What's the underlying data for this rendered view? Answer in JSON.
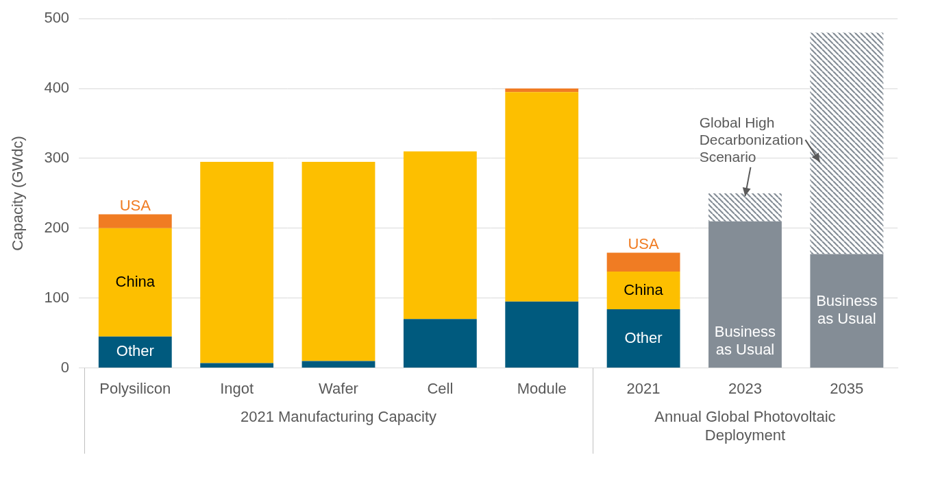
{
  "chart_data": {
    "type": "bar",
    "stacked": true,
    "y_label": "Capacity (GWdc)",
    "categories": [
      "Polysilicon",
      "Ingot",
      "Wafer",
      "Cell",
      "Module",
      "2021",
      "2023",
      "2035"
    ],
    "groups": [
      {
        "label": "2021 Manufacturing Capacity",
        "categories": [
          "Polysilicon",
          "Ingot",
          "Wafer",
          "Cell",
          "Module"
        ]
      },
      {
        "label": "Annual Global Photovoltaic Deployment",
        "categories": [
          "2021",
          "2023",
          "2035"
        ]
      }
    ],
    "series": [
      {
        "name": "Other",
        "color": "#005a7e",
        "values": [
          45,
          7,
          10,
          70,
          95,
          84,
          null,
          null
        ]
      },
      {
        "name": "China",
        "color": "#fdbf00",
        "values": [
          155,
          288,
          285,
          240,
          300,
          54,
          null,
          null
        ]
      },
      {
        "name": "USA",
        "color": "#f07c23",
        "values": [
          20,
          0,
          0,
          0,
          5,
          27,
          null,
          null
        ]
      },
      {
        "name": "Business as Usual",
        "color": "#848d96",
        "values": [
          null,
          null,
          null,
          null,
          null,
          null,
          210,
          163
        ]
      },
      {
        "name": "Global High Decarbonization Scenario",
        "color": "#848d96",
        "line_style": "hatched",
        "values": [
          null,
          null,
          null,
          null,
          null,
          null,
          40,
          317
        ]
      }
    ],
    "ylim": [
      0,
      500
    ],
    "yticks": [
      0,
      100,
      200,
      300,
      400,
      500
    ],
    "grid": true,
    "segment_labels": [
      {
        "series": "USA",
        "category": "Polysilicon"
      },
      {
        "series": "China",
        "category": "Polysilicon"
      },
      {
        "series": "Other",
        "category": "Polysilicon"
      },
      {
        "series": "USA",
        "category": "2021"
      },
      {
        "series": "China",
        "category": "2021"
      },
      {
        "series": "Other",
        "category": "2021"
      },
      {
        "series": "Business as Usual",
        "category": "2023"
      },
      {
        "series": "Business as Usual",
        "category": "2035"
      }
    ],
    "annotations": [
      {
        "text": "Global High Decarbonization Scenario",
        "series": "Global High Decarbonization Scenario",
        "arrows_to": [
          "2023",
          "2035"
        ]
      }
    ]
  }
}
